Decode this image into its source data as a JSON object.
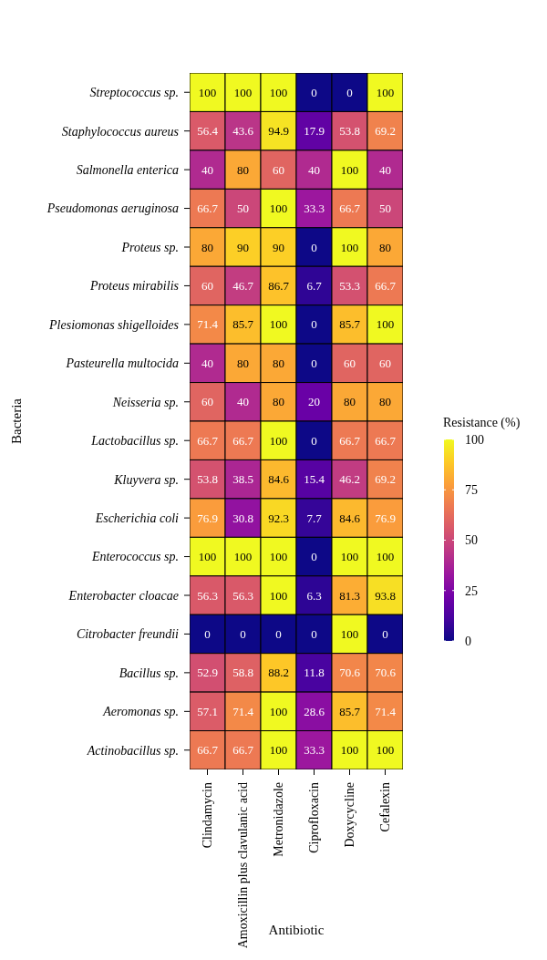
{
  "chart_data": {
    "type": "heatmap",
    "xlabel": "Antibiotic",
    "ylabel": "Bacteria",
    "clabel": "Resistance (%)",
    "categories": [
      "Clindamycin",
      "Amoxicillin plus clavulanic acid",
      "Metronidazole",
      "Ciprofloxacin",
      "Doxycycline",
      "Cefalexin"
    ],
    "y_categories": [
      "Streptococcus sp.",
      "Staphylococcus aureus",
      "Salmonella enterica",
      "Pseudomonas aeruginosa",
      "Proteus sp.",
      "Proteus mirabilis",
      "Plesiomonas shigelloides",
      "Pasteurella multocida",
      "Neisseria sp.",
      "Lactobacillus sp.",
      "Kluyvera sp.",
      "Escherichia coli",
      "Enterococcus sp.",
      "Enterobacter cloacae",
      "Citrobacter freundii",
      "Bacillus sp.",
      "Aeromonas sp.",
      "Actinobacillus sp."
    ],
    "cells": [
      [
        100,
        100,
        100,
        0,
        0,
        100
      ],
      [
        56.4,
        43.6,
        94.9,
        17.9,
        53.8,
        69.2
      ],
      [
        40,
        80,
        60,
        40,
        100,
        40
      ],
      [
        66.7,
        50,
        100,
        33.3,
        66.7,
        50
      ],
      [
        80,
        90,
        90,
        0,
        100,
        80
      ],
      [
        60,
        46.7,
        86.7,
        6.7,
        53.3,
        66.7
      ],
      [
        71.4,
        85.7,
        100,
        0,
        85.7,
        100
      ],
      [
        40,
        80,
        80,
        0,
        60,
        60
      ],
      [
        60,
        40,
        80,
        20,
        80,
        80
      ],
      [
        66.7,
        66.7,
        100,
        0,
        66.7,
        66.7
      ],
      [
        53.8,
        38.5,
        84.6,
        15.4,
        46.2,
        69.2
      ],
      [
        76.9,
        30.8,
        92.3,
        7.7,
        84.6,
        76.9
      ],
      [
        100,
        100,
        100,
        0,
        100,
        100
      ],
      [
        56.3,
        56.3,
        100,
        6.3,
        81.3,
        93.8
      ],
      [
        0,
        0,
        0,
        0,
        100,
        0
      ],
      [
        52.9,
        58.8,
        88.2,
        11.8,
        70.6,
        70.6
      ],
      [
        57.1,
        71.4,
        100,
        28.6,
        85.7,
        71.4
      ],
      [
        66.7,
        66.7,
        100,
        33.3,
        100,
        100
      ]
    ],
    "clim": [
      0,
      100
    ],
    "cticks": [
      0,
      25,
      50,
      75,
      100
    ],
    "data_labels": true
  }
}
